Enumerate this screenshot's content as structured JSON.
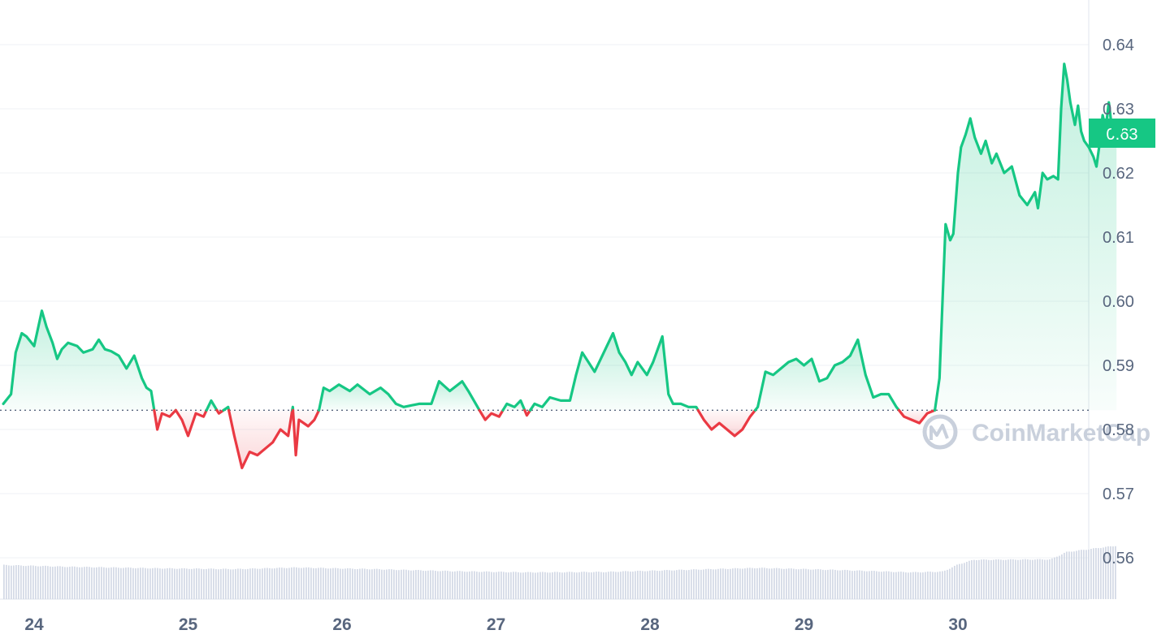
{
  "chart_data": {
    "type": "area",
    "title": "",
    "xlabel": "",
    "ylabel": "",
    "x_tick_labels": [
      "24",
      "25",
      "26",
      "27",
      "28",
      "29",
      "30"
    ],
    "y_tick_labels": [
      "0.64",
      "0.63",
      "0.62",
      "0.61",
      "0.60",
      "0.59",
      "0.58",
      "0.57",
      "0.56"
    ],
    "ylim": [
      0.554,
      0.6466
    ],
    "xlim_days": [
      23.8,
      30.87
    ],
    "baseline": 0.583,
    "current_price_label": "0.63",
    "current_price": 0.6265,
    "colors": {
      "up": "#16c784",
      "down": "#ea3943",
      "grid": "#eff2f5",
      "volume": "#cfd6e4",
      "axis_text": "#58667e"
    },
    "series": [
      {
        "values": [
          [
            23.8,
            0.584
          ],
          [
            23.85,
            0.5855
          ],
          [
            23.88,
            0.592
          ],
          [
            23.92,
            0.595
          ],
          [
            23.95,
            0.5945
          ],
          [
            24.0,
            0.593
          ],
          [
            24.05,
            0.5985
          ],
          [
            24.08,
            0.596
          ],
          [
            24.12,
            0.5935
          ],
          [
            24.15,
            0.591
          ],
          [
            24.18,
            0.5925
          ],
          [
            24.22,
            0.5935
          ],
          [
            24.28,
            0.593
          ],
          [
            24.32,
            0.592
          ],
          [
            24.38,
            0.5925
          ],
          [
            24.42,
            0.594
          ],
          [
            24.46,
            0.5925
          ],
          [
            24.5,
            0.5922
          ],
          [
            24.55,
            0.5915
          ],
          [
            24.6,
            0.5895
          ],
          [
            24.65,
            0.5915
          ],
          [
            24.7,
            0.588
          ],
          [
            24.73,
            0.5865
          ],
          [
            24.76,
            0.586
          ],
          [
            24.78,
            0.583
          ],
          [
            24.8,
            0.58
          ],
          [
            24.83,
            0.5825
          ],
          [
            24.88,
            0.582
          ],
          [
            24.92,
            0.583
          ],
          [
            24.96,
            0.5815
          ],
          [
            25.0,
            0.579
          ],
          [
            25.05,
            0.5825
          ],
          [
            25.1,
            0.582
          ],
          [
            25.15,
            0.5845
          ],
          [
            25.2,
            0.5825
          ],
          [
            25.26,
            0.5835
          ],
          [
            25.3,
            0.579
          ],
          [
            25.35,
            0.574
          ],
          [
            25.4,
            0.5765
          ],
          [
            25.45,
            0.576
          ],
          [
            25.5,
            0.577
          ],
          [
            25.55,
            0.578
          ],
          [
            25.6,
            0.58
          ],
          [
            25.65,
            0.579
          ],
          [
            25.68,
            0.5835
          ],
          [
            25.7,
            0.576
          ],
          [
            25.72,
            0.5815
          ],
          [
            25.78,
            0.5805
          ],
          [
            25.82,
            0.5815
          ],
          [
            25.85,
            0.583
          ],
          [
            25.88,
            0.5865
          ],
          [
            25.92,
            0.586
          ],
          [
            25.98,
            0.587
          ],
          [
            26.05,
            0.586
          ],
          [
            26.1,
            0.587
          ],
          [
            26.18,
            0.5855
          ],
          [
            26.25,
            0.5865
          ],
          [
            26.3,
            0.5855
          ],
          [
            26.35,
            0.584
          ],
          [
            26.4,
            0.5835
          ],
          [
            26.5,
            0.584
          ],
          [
            26.58,
            0.584
          ],
          [
            26.63,
            0.5875
          ],
          [
            26.7,
            0.586
          ],
          [
            26.78,
            0.5875
          ],
          [
            26.82,
            0.586
          ],
          [
            26.88,
            0.5835
          ],
          [
            26.93,
            0.5815
          ],
          [
            26.97,
            0.5825
          ],
          [
            27.02,
            0.582
          ],
          [
            27.07,
            0.584
          ],
          [
            27.12,
            0.5835
          ],
          [
            27.16,
            0.5845
          ],
          [
            27.2,
            0.5822
          ],
          [
            27.25,
            0.584
          ],
          [
            27.3,
            0.5835
          ],
          [
            27.35,
            0.585
          ],
          [
            27.42,
            0.5845
          ],
          [
            27.48,
            0.5845
          ],
          [
            27.52,
            0.5885
          ],
          [
            27.56,
            0.592
          ],
          [
            27.6,
            0.5905
          ],
          [
            27.64,
            0.589
          ],
          [
            27.68,
            0.591
          ],
          [
            27.72,
            0.593
          ],
          [
            27.76,
            0.595
          ],
          [
            27.8,
            0.592
          ],
          [
            27.84,
            0.5905
          ],
          [
            27.88,
            0.5885
          ],
          [
            27.92,
            0.5905
          ],
          [
            27.98,
            0.5885
          ],
          [
            28.02,
            0.5905
          ],
          [
            28.05,
            0.5925
          ],
          [
            28.08,
            0.5945
          ],
          [
            28.12,
            0.5855
          ],
          [
            28.15,
            0.584
          ],
          [
            28.2,
            0.584
          ],
          [
            28.25,
            0.5835
          ],
          [
            28.3,
            0.5835
          ],
          [
            28.35,
            0.5815
          ],
          [
            28.4,
            0.58
          ],
          [
            28.45,
            0.581
          ],
          [
            28.5,
            0.58
          ],
          [
            28.55,
            0.579
          ],
          [
            28.6,
            0.58
          ],
          [
            28.65,
            0.582
          ],
          [
            28.7,
            0.5835
          ],
          [
            28.75,
            0.589
          ],
          [
            28.8,
            0.5885
          ],
          [
            28.85,
            0.5895
          ],
          [
            28.9,
            0.5905
          ],
          [
            28.95,
            0.591
          ],
          [
            29.0,
            0.59
          ],
          [
            29.05,
            0.591
          ],
          [
            29.1,
            0.5875
          ],
          [
            29.15,
            0.588
          ],
          [
            29.2,
            0.59
          ],
          [
            29.25,
            0.5905
          ],
          [
            29.3,
            0.5915
          ],
          [
            29.35,
            0.594
          ],
          [
            29.4,
            0.5885
          ],
          [
            29.45,
            0.585
          ],
          [
            29.5,
            0.5855
          ],
          [
            29.55,
            0.5855
          ],
          [
            29.6,
            0.5835
          ],
          [
            29.65,
            0.582
          ],
          [
            29.7,
            0.5815
          ],
          [
            29.75,
            0.581
          ],
          [
            29.8,
            0.5825
          ],
          [
            29.85,
            0.583
          ],
          [
            29.88,
            0.588
          ],
          [
            29.9,
            0.6
          ],
          [
            29.92,
            0.612
          ],
          [
            29.95,
            0.6095
          ],
          [
            29.97,
            0.6105
          ],
          [
            30.0,
            0.62
          ],
          [
            30.02,
            0.624
          ],
          [
            30.05,
            0.626
          ],
          [
            30.08,
            0.6285
          ],
          [
            30.11,
            0.6255
          ],
          [
            30.15,
            0.623
          ],
          [
            30.18,
            0.625
          ],
          [
            30.22,
            0.6215
          ],
          [
            30.25,
            0.623
          ],
          [
            30.3,
            0.62
          ],
          [
            30.35,
            0.621
          ],
          [
            30.4,
            0.6165
          ],
          [
            30.45,
            0.615
          ],
          [
            30.5,
            0.617
          ],
          [
            30.52,
            0.6145
          ],
          [
            30.55,
            0.62
          ],
          [
            30.58,
            0.619
          ],
          [
            30.62,
            0.6195
          ],
          [
            30.65,
            0.619
          ],
          [
            30.67,
            0.63
          ],
          [
            30.69,
            0.637
          ],
          [
            30.71,
            0.6345
          ],
          [
            30.73,
            0.631
          ],
          [
            30.76,
            0.6275
          ],
          [
            30.78,
            0.6305
          ],
          [
            30.8,
            0.6265
          ],
          [
            30.82,
            0.625
          ],
          [
            30.85,
            0.624
          ],
          [
            30.88,
            0.6225
          ],
          [
            30.9,
            0.621
          ],
          [
            30.92,
            0.6245
          ],
          [
            30.94,
            0.629
          ],
          [
            30.96,
            0.627
          ],
          [
            30.98,
            0.631
          ],
          [
            31.0,
            0.627
          ],
          [
            31.03,
            0.6265
          ]
        ]
      }
    ],
    "volume_shape": [
      [
        23.8,
        0.84
      ],
      [
        24.2,
        0.8
      ],
      [
        24.8,
        0.76
      ],
      [
        25.3,
        0.74
      ],
      [
        25.7,
        0.78
      ],
      [
        26.2,
        0.74
      ],
      [
        26.7,
        0.69
      ],
      [
        27.2,
        0.66
      ],
      [
        27.7,
        0.67
      ],
      [
        28.2,
        0.72
      ],
      [
        28.7,
        0.77
      ],
      [
        29.2,
        0.72
      ],
      [
        29.7,
        0.66
      ],
      [
        29.9,
        0.68
      ],
      [
        30.0,
        0.86
      ],
      [
        30.1,
        0.97
      ],
      [
        30.6,
        0.98
      ],
      [
        30.7,
        1.16
      ],
      [
        31.03,
        1.32
      ]
    ],
    "watermark": "CoinMarketCap"
  }
}
